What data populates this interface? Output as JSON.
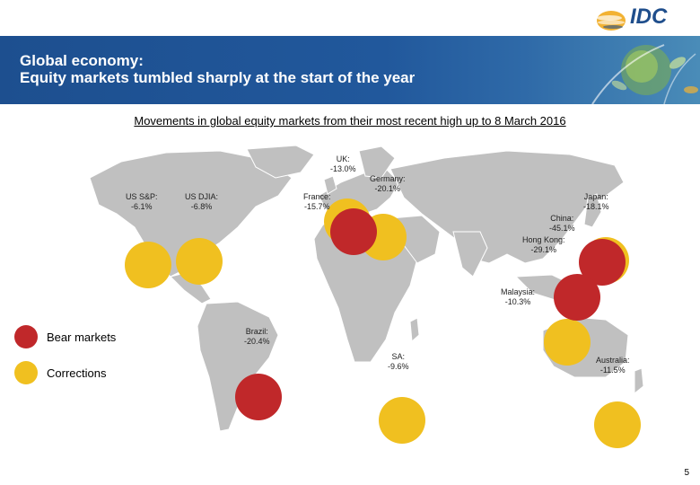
{
  "header": {
    "logo_text": "IDC",
    "title_line1": "Global economy:",
    "title_line2": "Equity markets tumbled sharply at the start of the year"
  },
  "subtitle": "Movements in global equity markets from their most recent high up to 8 March 2016",
  "markets": [
    {
      "id": "us-sp",
      "name": "US S&P:",
      "value": "-6.1%",
      "type": "correction"
    },
    {
      "id": "us-djia",
      "name": "US DJIA:",
      "value": "-6.8%",
      "type": "correction"
    },
    {
      "id": "uk",
      "name": "UK:",
      "value": "-13.0%",
      "type": "correction"
    },
    {
      "id": "germany",
      "name": "Germany:",
      "value": "-20.1%",
      "type": "bear"
    },
    {
      "id": "france",
      "name": "France:",
      "value": "-15.7%",
      "type": "correction"
    },
    {
      "id": "japan",
      "name": "Japan:",
      "value": "-18.1%",
      "type": "correction"
    },
    {
      "id": "china",
      "name": "China:",
      "value": "-45.1%",
      "type": "bear"
    },
    {
      "id": "hong-kong",
      "name": "Hong Kong:",
      "value": "-29.1%",
      "type": "bear"
    },
    {
      "id": "malaysia",
      "name": "Malaysia:",
      "value": "-10.3%",
      "type": "correction"
    },
    {
      "id": "brazil",
      "name": "Brazil:",
      "value": "-20.4%",
      "type": "bear"
    },
    {
      "id": "sa",
      "name": "SA:",
      "value": "-9.6%",
      "type": "correction"
    },
    {
      "id": "australia",
      "name": "Australia:",
      "value": "-11.5%",
      "type": "correction"
    }
  ],
  "legend": {
    "bear_label": "Bear markets",
    "correction_label": "Corrections"
  },
  "colors": {
    "bear": "#c0282a",
    "correction": "#f0c020",
    "land": "#c0c0c0",
    "banner": "#1d4f8f"
  },
  "page_number": "5"
}
